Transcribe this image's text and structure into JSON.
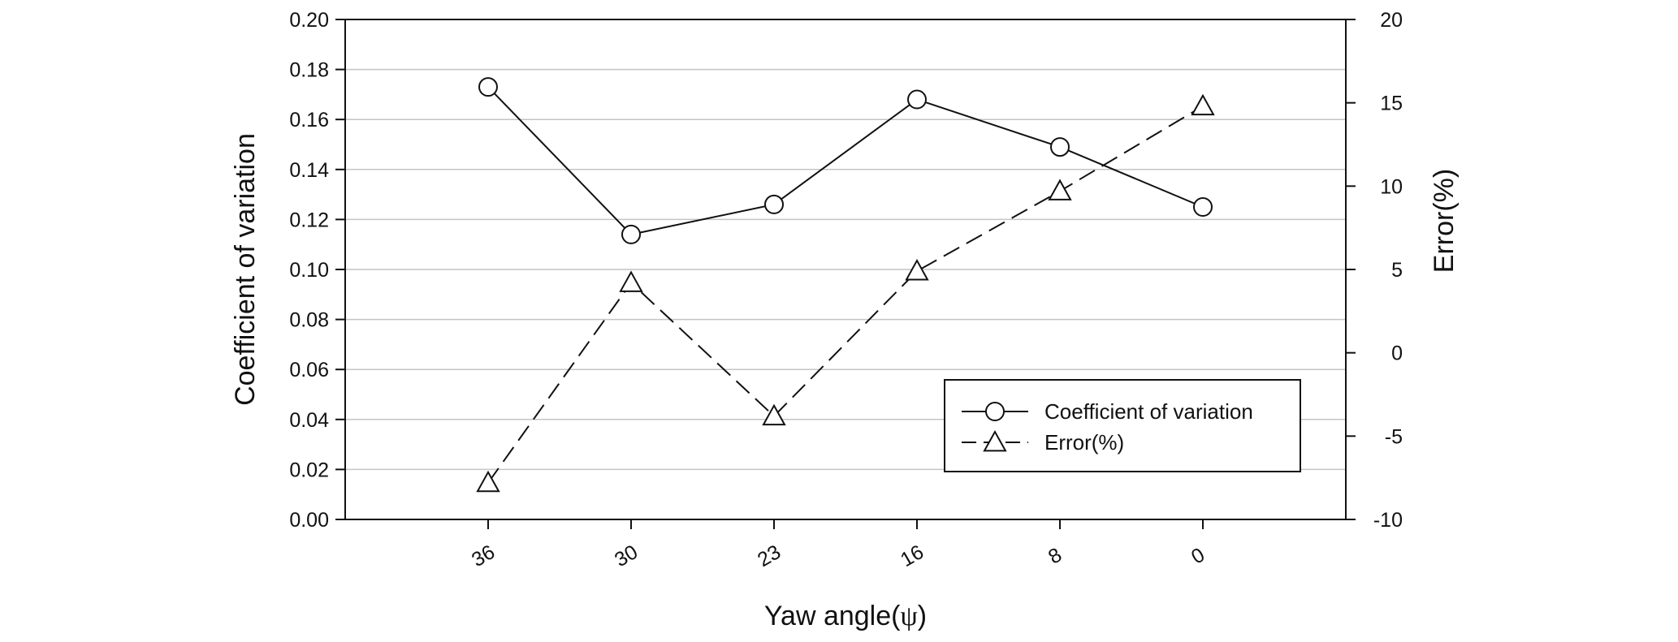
{
  "chart_data": {
    "type": "line",
    "title": "",
    "categories": [
      "36",
      "30",
      "23",
      "16",
      "8",
      "0"
    ],
    "xlabel_prefix": "Yaw angle(",
    "xlabel_symbol": "ψ",
    "xlabel_suffix": ")",
    "ylabel": "Coefficient of variation",
    "y2label": "Error(%)",
    "ylim": [
      0,
      0.2
    ],
    "y2lim": [
      -10,
      20
    ],
    "yticks": [
      "0.00",
      "0.02",
      "0.04",
      "0.06",
      "0.08",
      "0.10",
      "0.12",
      "0.14",
      "0.16",
      "0.18",
      "0.20"
    ],
    "y2ticks": [
      "-10",
      "-5",
      "0",
      "5",
      "10",
      "15",
      "20"
    ],
    "grid": true,
    "legend_position": "lower-right",
    "series": [
      {
        "name": "Coefficient of variation",
        "axis": "left",
        "marker": "circle",
        "line_style": "solid",
        "values": [
          0.173,
          0.114,
          0.126,
          0.168,
          0.149,
          0.125
        ]
      },
      {
        "name": "Error(%)",
        "axis": "right",
        "marker": "triangle",
        "line_style": "dashed",
        "values": [
          -7.8,
          4.2,
          -3.8,
          4.9,
          9.7,
          14.8
        ]
      }
    ]
  }
}
